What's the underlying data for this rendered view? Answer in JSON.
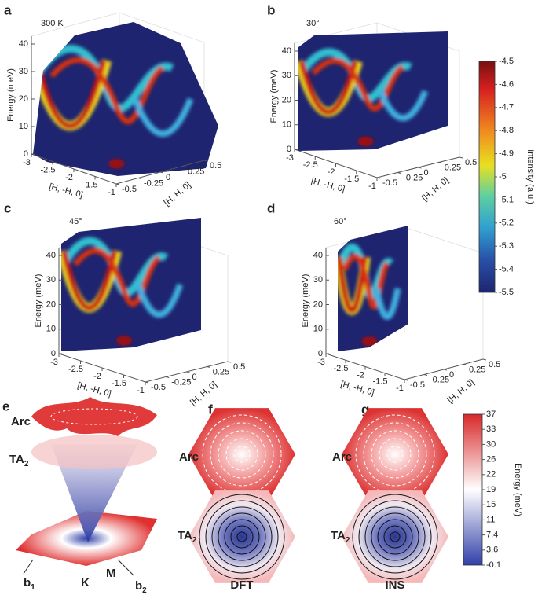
{
  "panels": [
    {
      "letter": "a",
      "annotation": "300 K",
      "z_label": "Energy (meV)",
      "z_ticks": [
        "0",
        "10",
        "20",
        "30",
        "40"
      ],
      "x_label": "[H, -H, 0]",
      "x_ticks": [
        "-3",
        "-2.5",
        "-2",
        "-1.5",
        "-1"
      ],
      "y_label": "[H, H, 0]",
      "y_ticks": [
        "-0.5",
        "-0.25",
        "0",
        "0.25",
        "0.5"
      ]
    },
    {
      "letter": "b",
      "annotation": "30°",
      "z_label": "Energy (meV)",
      "z_ticks": [
        "0",
        "10",
        "20",
        "30",
        "40"
      ],
      "x_label": "[H, -H, 0]",
      "x_ticks": [
        "-3",
        "-2.5",
        "-2",
        "-1.5",
        "-1"
      ],
      "y_label": "[H, H, 0]",
      "y_ticks": [
        "-0.5",
        "-0.25",
        "0",
        "0.25",
        "0.5"
      ]
    },
    {
      "letter": "c",
      "annotation": "45°",
      "z_label": "Energy (meV)",
      "z_ticks": [
        "0",
        "10",
        "20",
        "30",
        "40"
      ],
      "x_label": "[H, -H, 0]",
      "x_ticks": [
        "-3",
        "-2.5",
        "-2",
        "-1.5",
        "-1"
      ],
      "y_label": "[H, H, 0]",
      "y_ticks": [
        "-0.5",
        "-0.25",
        "0",
        "0.25",
        "0.5"
      ]
    },
    {
      "letter": "d",
      "annotation": "60°",
      "z_label": "Energy (meV)",
      "z_ticks": [
        "0",
        "10",
        "20",
        "30",
        "40"
      ],
      "x_label": "[H, -H, 0]",
      "x_ticks": [
        "-3",
        "-2.5",
        "-2",
        "-1.5",
        "-1"
      ],
      "y_label": "[H, H, 0]",
      "y_ticks": [
        "-0.5",
        "-0.25",
        "0",
        "0.25",
        "0.5"
      ]
    }
  ],
  "intensity_colorbar": {
    "label": "Intensity (a.u.)",
    "ticks": [
      "-4.5",
      "-4.6",
      "-4.7",
      "-4.8",
      "-4.9",
      "-5",
      "-5.1",
      "-5.2",
      "-5.3",
      "-5.4",
      "-5.5"
    ]
  },
  "panel_e": {
    "letter": "e",
    "arc": "Arc",
    "ta": {
      "main": "TA",
      "sub": "2"
    },
    "b1": {
      "main": "b",
      "sub": "1"
    },
    "k": "K",
    "m": "M",
    "b2": {
      "main": "b",
      "sub": "2"
    }
  },
  "panel_f": {
    "letter": "f",
    "arc": "Arc",
    "ta": {
      "main": "TA",
      "sub": "2"
    },
    "caption": "DFT"
  },
  "panel_g": {
    "letter": "g",
    "arc": "Arc",
    "ta": {
      "main": "TA",
      "sub": "2"
    },
    "caption": "INS"
  },
  "energy_colorbar": {
    "label": "Energy (meV)",
    "ticks": [
      "37",
      "33",
      "30",
      "26",
      "22",
      "19",
      "15",
      "11",
      "7.4",
      "3.6",
      "-0.1"
    ]
  }
}
